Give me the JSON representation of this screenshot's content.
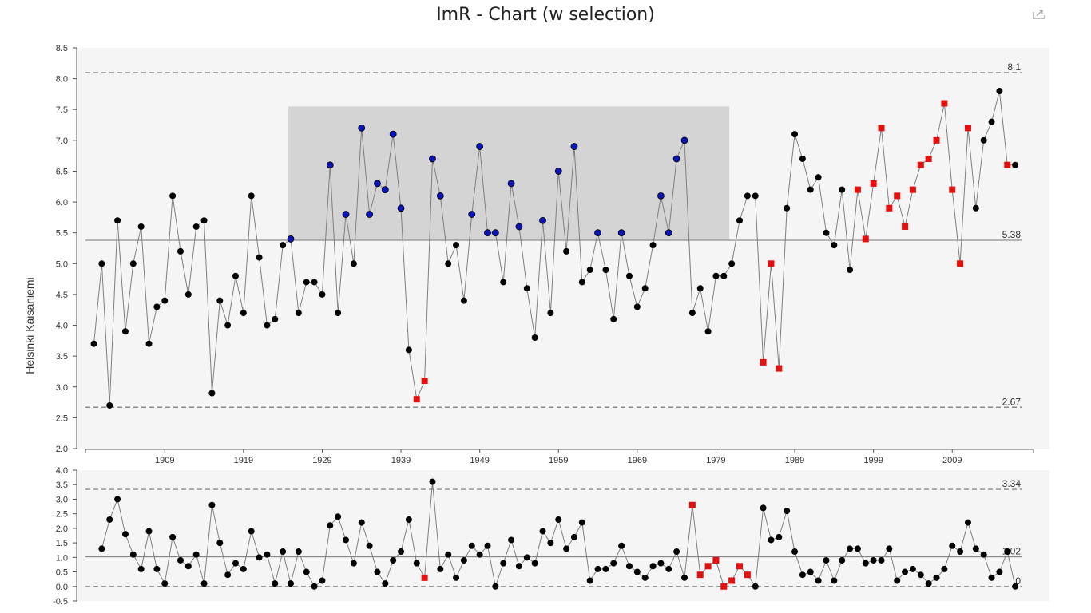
{
  "title": "ImR - Chart (w selection)",
  "icons": {
    "export": "export-icon"
  },
  "colors": {
    "panel_bg": "#f5f5f5",
    "selection": "#d4d4d4",
    "line": "#7f7f7f",
    "point": "#000000",
    "selected_point": "#0b14b5",
    "violation": "#e31010",
    "limit_line": "#8a8a8a"
  },
  "chart_data": [
    {
      "type": "line",
      "name": "individuals",
      "ylabel": "Helsinki Kaisaniemi",
      "ylim": [
        2.0,
        8.5
      ],
      "yticks": [
        "2.0",
        "2.5",
        "3.0",
        "3.5",
        "4.0",
        "4.5",
        "5.0",
        "5.5",
        "6.0",
        "6.5",
        "7.0",
        "7.5",
        "8.0",
        "8.5"
      ],
      "xticks": [
        "1909",
        "1919",
        "1929",
        "1939",
        "1949",
        "1959",
        "1969",
        "1979",
        "1989",
        "1999",
        "2009"
      ],
      "xtick_years": [
        1909,
        1919,
        1929,
        1939,
        1949,
        1959,
        1969,
        1979,
        1989,
        1999,
        2009
      ],
      "x_start": 1900,
      "limits": {
        "ucl": 8.1,
        "center": 5.38,
        "lcl": 2.67
      },
      "limit_labels": {
        "ucl": "8.1",
        "center": "5.38",
        "lcl": "2.67"
      },
      "selection": {
        "x_from": 1924.7,
        "x_to": 1980.7,
        "y_from": 5.38,
        "y_to": 7.55
      },
      "values": [
        3.7,
        5.0,
        2.7,
        5.7,
        3.9,
        5.0,
        5.6,
        3.7,
        4.3,
        4.4,
        6.1,
        5.2,
        4.5,
        5.6,
        5.7,
        2.9,
        4.4,
        4.0,
        4.8,
        4.2,
        6.1,
        5.1,
        4.0,
        4.1,
        5.3,
        5.4,
        4.2,
        4.7,
        4.7,
        4.5,
        6.6,
        4.2,
        5.8,
        5.0,
        7.2,
        5.8,
        6.3,
        6.2,
        7.1,
        5.9,
        3.6,
        2.8,
        3.1,
        6.7,
        6.1,
        5.0,
        5.3,
        4.4,
        5.8,
        6.9,
        5.5,
        5.5,
        4.7,
        6.3,
        5.6,
        4.6,
        3.8,
        5.7,
        4.2,
        6.5,
        5.2,
        6.9,
        4.7,
        4.9,
        5.5,
        4.9,
        4.1,
        5.5,
        4.8,
        4.3,
        4.6,
        5.3,
        6.1,
        5.5,
        6.7,
        7.0,
        4.2,
        4.6,
        3.9,
        4.8,
        4.8,
        5.0,
        5.7,
        6.1,
        6.1,
        3.4,
        5.0,
        3.3,
        5.9,
        7.1,
        6.7,
        6.2,
        6.4,
        5.5,
        5.3,
        6.2,
        4.9,
        6.2,
        5.4,
        6.3,
        7.2,
        5.9,
        6.1,
        5.6,
        6.2,
        6.6,
        6.7,
        7.0,
        7.6,
        6.2,
        5.0,
        7.2,
        5.9,
        7.0,
        7.3,
        7.8,
        6.6,
        6.6
      ],
      "status": "nnnnnnnnnnnnnnnnnnnnnnnnnbnnnnbnbnbbbbbbnrrbbnnnbbbbnbbnnbnbnbnnbnnbnnnnbbbbnnnnnnnnnrrrnnnnnnnnnrrrrrrrrrrrrrrrnnnnrnn"
    },
    {
      "type": "line",
      "name": "moving-range",
      "ylim": [
        -0.5,
        4.0
      ],
      "yticks": [
        "-0.5",
        "0.0",
        "0.5",
        "1.0",
        "1.5",
        "2.0",
        "2.5",
        "3.0",
        "3.5",
        "4.0"
      ],
      "limits": {
        "ucl": 3.34,
        "center": 1.02,
        "lcl": 0
      },
      "limit_labels": {
        "ucl": "3.34",
        "center": "1.02",
        "lcl": "0"
      },
      "values": [
        1.3,
        2.3,
        3.0,
        1.8,
        1.1,
        0.6,
        1.9,
        0.6,
        0.1,
        1.7,
        0.9,
        0.7,
        1.1,
        0.1,
        2.8,
        1.5,
        0.4,
        0.8,
        0.6,
        1.9,
        1.0,
        1.1,
        0.1,
        1.2,
        0.1,
        1.2,
        0.5,
        0.0,
        0.2,
        2.1,
        2.4,
        1.6,
        0.8,
        2.2,
        1.4,
        0.5,
        0.1,
        0.9,
        1.2,
        2.3,
        0.8,
        0.3,
        3.6,
        0.6,
        1.1,
        0.3,
        0.9,
        1.4,
        1.1,
        1.4,
        0.0,
        0.8,
        1.6,
        0.7,
        1.0,
        0.8,
        1.9,
        1.5,
        2.3,
        1.3,
        1.7,
        2.2,
        0.2,
        0.6,
        0.6,
        0.8,
        1.4,
        0.7,
        0.5,
        0.3,
        0.7,
        0.8,
        0.6,
        1.2,
        0.3,
        2.8,
        0.4,
        0.7,
        0.9,
        0.0,
        0.2,
        0.7,
        0.4,
        0.0,
        2.7,
        1.6,
        1.7,
        2.6,
        1.2,
        0.4,
        0.5,
        0.2,
        0.9,
        0.2,
        0.9,
        1.3,
        1.3,
        0.8,
        0.9,
        0.9,
        1.3,
        0.2,
        0.5,
        0.6,
        0.4,
        0.1,
        0.3,
        0.6,
        1.4,
        1.2,
        2.2,
        1.3,
        1.1,
        0.3,
        0.5,
        1.2,
        0.0
      ],
      "status": "nnnnnnnnnnnnnnnnnnnnnnnnnnnnnnnnnnnnnnnnnrnnnnnnnnnnnnnnnnnnnnnnnnnnnnnnnnnrrrrrrrrnnnnnnnnnnnnnnnnnnnnnnnnnnnnnnnnnn"
    }
  ]
}
